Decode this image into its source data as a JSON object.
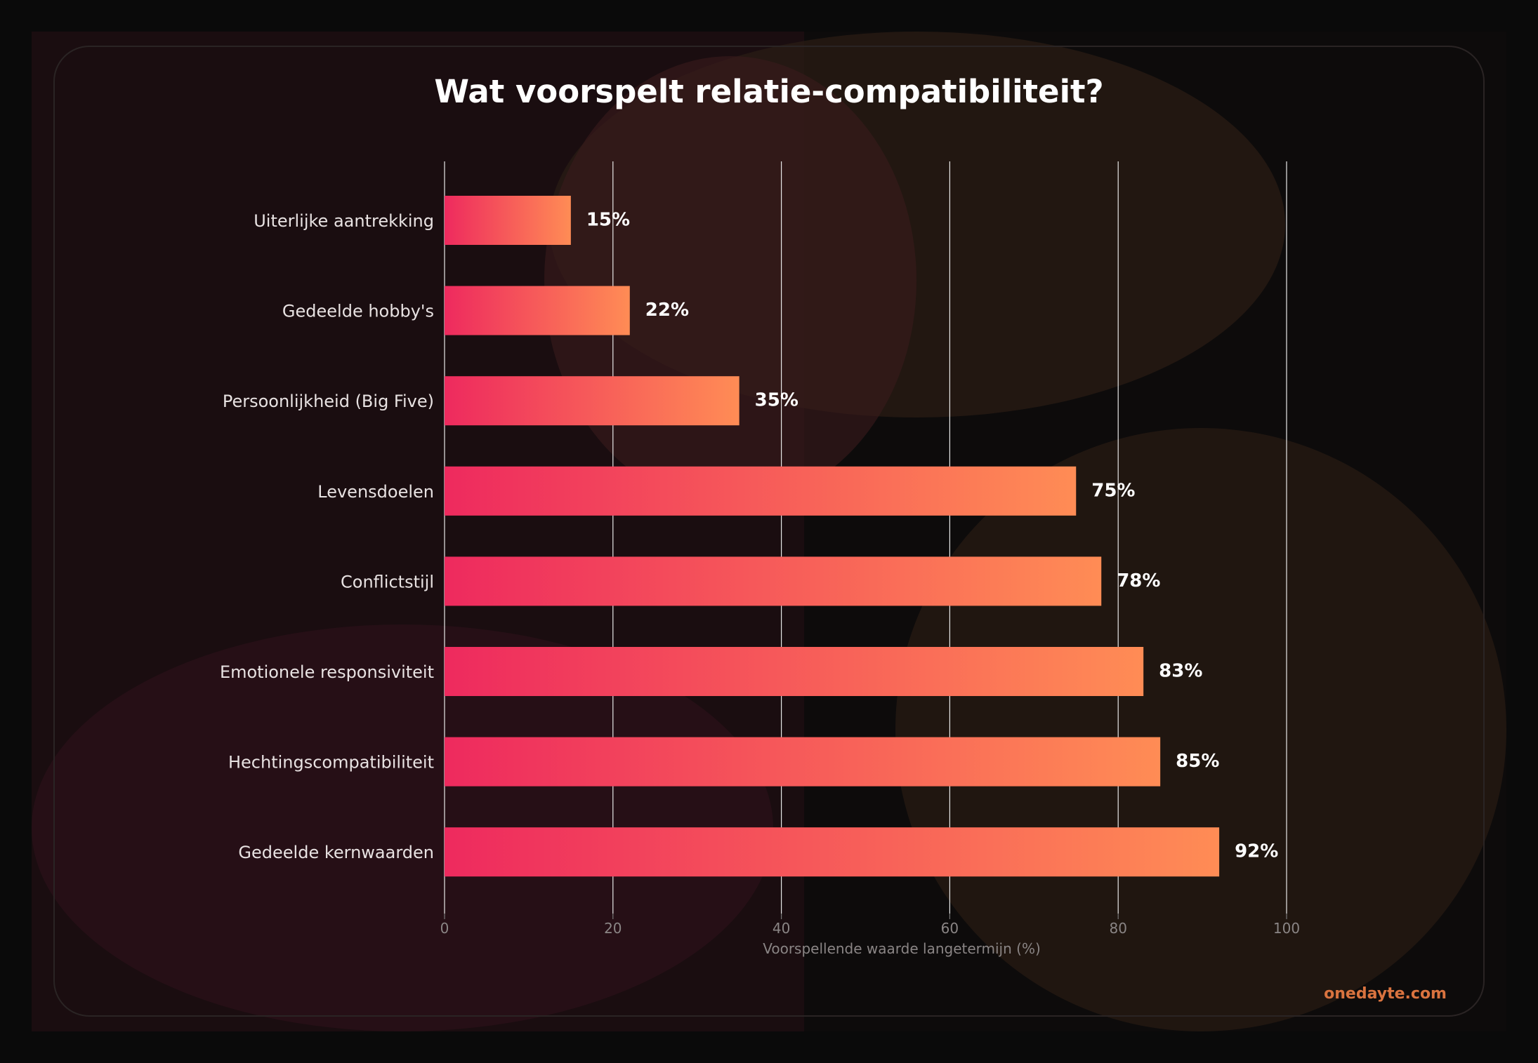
{
  "chart_data": {
    "type": "bar",
    "orientation": "horizontal",
    "title": "Wat voorspelt relatie-compatibiliteit?",
    "xlabel": "Voorspellende waarde langetermijn (%)",
    "ylabel": "",
    "categories": [
      "Uiterlijke aantrekking",
      "Gedeelde hobby's",
      "Persoonlijkheid (Big Five)",
      "Levensdoelen",
      "Conflictstijl",
      "Emotionele responsiviteit",
      "Hechtingscompatibiliteit",
      "Gedeelde kernwaarden"
    ],
    "values": [
      15,
      22,
      35,
      75,
      78,
      83,
      85,
      92
    ],
    "value_labels": [
      "15%",
      "22%",
      "35%",
      "75%",
      "78%",
      "83%",
      "85%",
      "92%"
    ],
    "xlim": [
      0,
      100
    ],
    "xticks": [
      "0",
      "20",
      "40",
      "60",
      "80",
      "100"
    ],
    "grid": "vertical",
    "legend": "none",
    "bar_gradient": [
      "#ee2a5e",
      "#ff8c55"
    ]
  },
  "watermark": "onedayte.com",
  "colors": {
    "background": "#0a0a0a",
    "watermark": "#d9733f"
  }
}
